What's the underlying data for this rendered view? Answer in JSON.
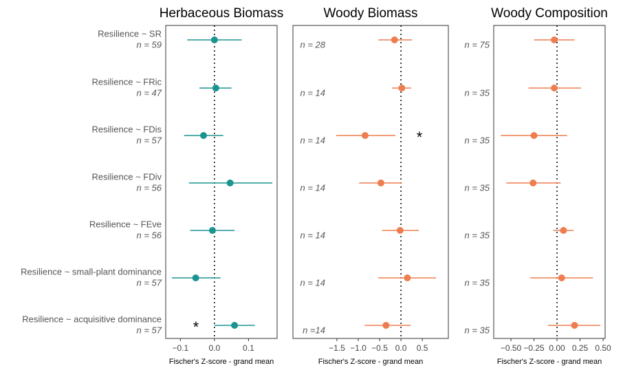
{
  "chart_data": [
    {
      "type": "forest",
      "title": "Herbaceous Biomass",
      "xlabel": "Fischer's Z-score - grand mean",
      "color": "#1a9490",
      "categories": [
        "Resilience ~ SR",
        "Resilience ~ FRic",
        "Resilience ~ FDis",
        "Resilience ~ FDiv",
        "Resilience ~ FEve",
        "Resilience ~ small-plant dominance",
        "Resilience ~ acquisitive dominance"
      ],
      "n_labels": [
        "n = 59",
        "n = 47",
        "n = 57",
        "n = 56",
        "n = 56",
        "n = 57",
        "n = 57"
      ],
      "values": [
        0.0,
        0.004,
        -0.032,
        0.046,
        -0.006,
        -0.055,
        0.059
      ],
      "lower": [
        -0.08,
        -0.044,
        -0.089,
        -0.075,
        -0.071,
        -0.125,
        0.0
      ],
      "upper": [
        0.08,
        0.05,
        0.026,
        0.17,
        0.059,
        0.018,
        0.119
      ],
      "markers": [
        null,
        null,
        null,
        null,
        null,
        null,
        "*"
      ],
      "refline": 0,
      "xlim": [
        -0.143,
        0.184
      ],
      "xticks": [
        {
          "value": -0.1,
          "label": "−0.1"
        },
        {
          "value": 0,
          "label": "0.0"
        },
        0.1
      ]
    },
    {
      "type": "forest",
      "title": "Woody Biomass",
      "xlabel": "Fischer's Z-score - grand mean",
      "color": "#ee7d4f",
      "n_labels": [
        "n = 28",
        "n = 14",
        "n = 14",
        "n = 14",
        "n = 14",
        "n = 14",
        "n =14"
      ],
      "values": [
        -0.15,
        0.02,
        -0.84,
        -0.47,
        -0.02,
        0.15,
        -0.35
      ],
      "lower": [
        -0.53,
        -0.21,
        -1.52,
        -0.98,
        -0.44,
        -0.53,
        -0.85
      ],
      "upper": [
        0.26,
        0.24,
        -0.13,
        0.02,
        0.42,
        0.82,
        0.23
      ],
      "markers": [
        null,
        null,
        "*",
        null,
        null,
        null,
        null
      ],
      "refline": 0,
      "xlim": [
        -2.53,
        1.11
      ],
      "xticks": [
        {
          "value": -1.5,
          "label": "−1.5"
        },
        {
          "value": -1,
          "label": "−1.0"
        },
        {
          "value": -0.5,
          "label": "−0.5"
        },
        {
          "value": 0,
          "label": "0.0"
        },
        0.5
      ]
    },
    {
      "type": "forest",
      "title": "Woody Composition",
      "xlabel": "Fischer's Z-score - grand mean",
      "color": "#ee7d4f",
      "n_labels": [
        "n = 75",
        "n = 35",
        "n = 35",
        "n = 35",
        "n = 35",
        "n = 35",
        "n = 35"
      ],
      "values": [
        -0.03,
        -0.03,
        -0.25,
        -0.26,
        0.07,
        0.05,
        0.19
      ],
      "lower": [
        -0.25,
        -0.31,
        -0.61,
        -0.55,
        -0.04,
        -0.29,
        -0.1
      ],
      "upper": [
        0.19,
        0.26,
        0.11,
        0.04,
        0.18,
        0.39,
        0.47
      ],
      "markers": [
        null,
        null,
        null,
        null,
        null,
        null,
        null
      ],
      "refline": 0,
      "xlim": [
        -0.687,
        0.522
      ],
      "xticks": [
        {
          "value": -0.5,
          "label": "−0.50"
        },
        {
          "value": -0.25,
          "label": "−0.25"
        },
        {
          "value": 0,
          "label": "0.00"
        },
        {
          "value": 0.25,
          "label": "0.25"
        },
        {
          "value": 0.5,
          "label": "0.50"
        }
      ]
    }
  ]
}
